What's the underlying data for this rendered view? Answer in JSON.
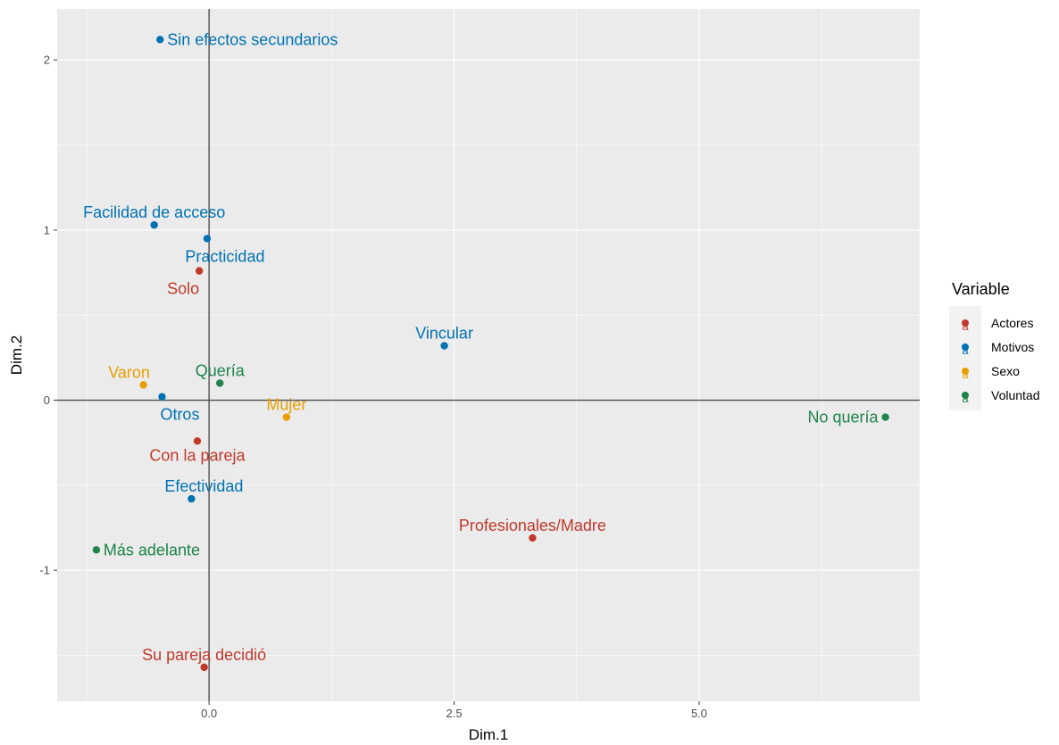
{
  "chart_data": {
    "type": "scatter",
    "title": "",
    "xlabel": "Dim.1",
    "ylabel": "Dim.2",
    "xlim": [
      -1.55,
      7.25
    ],
    "ylim": [
      -1.77,
      2.3
    ],
    "x_ticks": [
      {
        "value": 0,
        "label": "0.0"
      },
      {
        "value": 2.5,
        "label": "2.5"
      },
      {
        "value": 5,
        "label": "5.0"
      }
    ],
    "y_ticks": [
      {
        "value": -1,
        "label": "-1"
      },
      {
        "value": 0,
        "label": "0"
      },
      {
        "value": 1,
        "label": "1"
      },
      {
        "value": 2,
        "label": "2"
      }
    ],
    "grid": true,
    "reference_lines": {
      "x": 0,
      "y": 0
    },
    "legend": {
      "title": "Variable",
      "position": "right",
      "key_glyph": "a",
      "entries": [
        {
          "name": "Actores",
          "color": "#C0392B"
        },
        {
          "name": "Motivos",
          "color": "#0072B2"
        },
        {
          "name": "Sexo",
          "color": "#E69F00"
        },
        {
          "name": "Voluntad",
          "color": "#1E8449"
        }
      ]
    },
    "series": [
      {
        "name": "Actores",
        "color": "#C0392B",
        "points": [
          {
            "label": "Solo",
            "x": -0.1,
            "y": 0.76,
            "label_pos": "below-left"
          },
          {
            "label": "Con la pareja",
            "x": -0.12,
            "y": -0.24,
            "label_pos": "below"
          },
          {
            "label": "Profesionales/Madre",
            "x": 3.3,
            "y": -0.81,
            "label_pos": "above"
          },
          {
            "label": "Su pareja decidió",
            "x": -0.05,
            "y": -1.57,
            "label_pos": "above"
          }
        ]
      },
      {
        "name": "Motivos",
        "color": "#0072B2",
        "points": [
          {
            "label": "Sin efectos secundarios",
            "x": -0.5,
            "y": 2.12,
            "label_pos": "right"
          },
          {
            "label": "Facilidad de acceso",
            "x": -0.56,
            "y": 1.03,
            "label_pos": "above"
          },
          {
            "label": "Practicidad",
            "x": -0.02,
            "y": 0.95,
            "label_pos": "below-right"
          },
          {
            "label": "Vincular",
            "x": 2.4,
            "y": 0.32,
            "label_pos": "above"
          },
          {
            "label": "Otros",
            "x": -0.48,
            "y": 0.02,
            "label_pos": "below-right"
          },
          {
            "label": "Efectividad",
            "x": -0.18,
            "y": -0.58,
            "label_pos": "above-right"
          }
        ]
      },
      {
        "name": "Sexo",
        "color": "#E69F00",
        "points": [
          {
            "label": "Varon",
            "x": -0.67,
            "y": 0.09,
            "label_pos": "above-left"
          },
          {
            "label": "Mujer",
            "x": 0.79,
            "y": -0.1,
            "label_pos": "above"
          }
        ]
      },
      {
        "name": "Voluntad",
        "color": "#1E8449",
        "points": [
          {
            "label": "Quería",
            "x": 0.11,
            "y": 0.1,
            "label_pos": "above"
          },
          {
            "label": "No quería",
            "x": 6.9,
            "y": -0.1,
            "label_pos": "left"
          },
          {
            "label": "Más adelante",
            "x": -1.15,
            "y": -0.88,
            "label_pos": "right"
          }
        ]
      }
    ]
  }
}
